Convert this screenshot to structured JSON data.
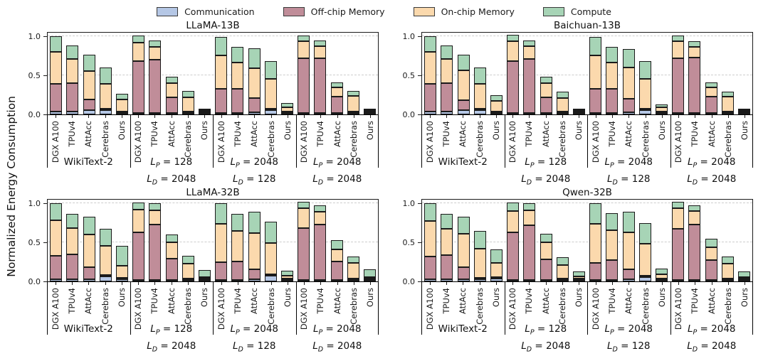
{
  "chart_data": {
    "type": "bar",
    "stacked": true,
    "ylabel": "Normalized Energy Consumption",
    "ylim": [
      0,
      1.06
    ],
    "yticks": [
      {
        "label": "0.0",
        "value": 0.0
      },
      {
        "label": "0.5",
        "value": 0.5
      },
      {
        "label": "1.0",
        "value": 1.0
      }
    ],
    "grid": "horizontal dashed at 0.5 and 1.0",
    "legend_position": "top center",
    "edge_color": "#1a1a1a",
    "legend": [
      {
        "label": "Communication",
        "color": "#b5c7e5"
      },
      {
        "label": "Off-chip Memory",
        "color": "#c08d99"
      },
      {
        "label": "On-chip Memory",
        "color": "#fbd9ad"
      },
      {
        "label": "Compute",
        "color": "#a7d4b6"
      }
    ],
    "bar_labels": [
      "DGX A100",
      "TPUv4",
      "AttAcc",
      "Cerebras",
      "Ours"
    ],
    "groups": [
      {
        "label_runs": [
          [
            {
              "t": "WikiText-2"
            }
          ]
        ]
      },
      {
        "label_runs": [
          [
            {
              "i": "L"
            },
            {
              "sub": "P"
            },
            {
              "t": " = 128"
            }
          ],
          [
            {
              "i": "L"
            },
            {
              "sub": "D"
            },
            {
              "t": " = 2048"
            }
          ]
        ]
      },
      {
        "label_runs": [
          [
            {
              "i": "L"
            },
            {
              "sub": "P"
            },
            {
              "t": " = 2048"
            }
          ],
          [
            {
              "i": "L"
            },
            {
              "sub": "D"
            },
            {
              "t": " = 128"
            }
          ]
        ]
      },
      {
        "label_runs": [
          [
            {
              "i": "L"
            },
            {
              "sub": "P"
            },
            {
              "t": " = 2048"
            }
          ],
          [
            {
              "i": "L"
            },
            {
              "sub": "D"
            },
            {
              "t": " = 2048"
            }
          ]
        ]
      }
    ],
    "series_order": [
      "Communication",
      "Off-chip Memory",
      "On-chip Memory",
      "Compute"
    ],
    "subplots": [
      {
        "title": "LLaMA-13B",
        "values": [
          [
            [
              0.04,
              0.35,
              0.41,
              0.2
            ],
            [
              0.04,
              0.36,
              0.31,
              0.17
            ],
            [
              0.05,
              0.14,
              0.36,
              0.21
            ],
            [
              0.05,
              0.01,
              0.32,
              0.21
            ],
            [
              0.01,
              0.01,
              0.15,
              0.07
            ]
          ],
          [
            [
              0.01,
              0.66,
              0.24,
              0.09
            ],
            [
              0.01,
              0.68,
              0.16,
              0.08
            ],
            [
              0.02,
              0.2,
              0.18,
              0.08
            ],
            [
              0.01,
              0.01,
              0.18,
              0.08
            ],
            [
              0.01,
              0.01,
              0.02,
              0.01
            ]
          ],
          [
            [
              0.02,
              0.31,
              0.43,
              0.24
            ],
            [
              0.02,
              0.31,
              0.34,
              0.2
            ],
            [
              0.03,
              0.18,
              0.38,
              0.25
            ],
            [
              0.05,
              0.01,
              0.38,
              0.23
            ],
            [
              0.01,
              0.01,
              0.05,
              0.05
            ]
          ],
          [
            [
              0.01,
              0.7,
              0.22,
              0.07
            ],
            [
              0.01,
              0.7,
              0.15,
              0.07
            ],
            [
              0.02,
              0.21,
              0.12,
              0.06
            ],
            [
              0.01,
              0.01,
              0.2,
              0.06
            ],
            [
              0.01,
              0.01,
              0.01,
              0.01
            ]
          ]
        ]
      },
      {
        "title": "Baichuan-13B",
        "values": [
          [
            [
              0.04,
              0.35,
              0.41,
              0.2
            ],
            [
              0.04,
              0.36,
              0.31,
              0.17
            ],
            [
              0.05,
              0.13,
              0.38,
              0.2
            ],
            [
              0.05,
              0.01,
              0.32,
              0.21
            ],
            [
              0.01,
              0.01,
              0.14,
              0.07
            ]
          ],
          [
            [
              0.01,
              0.66,
              0.25,
              0.08
            ],
            [
              0.01,
              0.69,
              0.16,
              0.07
            ],
            [
              0.02,
              0.2,
              0.18,
              0.08
            ],
            [
              0.02,
              0.01,
              0.17,
              0.08
            ],
            [
              0.01,
              0.01,
              0.02,
              0.01
            ]
          ],
          [
            [
              0.02,
              0.31,
              0.43,
              0.24
            ],
            [
              0.02,
              0.31,
              0.34,
              0.2
            ],
            [
              0.03,
              0.17,
              0.4,
              0.24
            ],
            [
              0.05,
              0.01,
              0.38,
              0.23
            ],
            [
              0.01,
              0.01,
              0.05,
              0.04
            ]
          ],
          [
            [
              0.01,
              0.7,
              0.22,
              0.07
            ],
            [
              0.01,
              0.71,
              0.14,
              0.07
            ],
            [
              0.02,
              0.21,
              0.12,
              0.06
            ],
            [
              0.01,
              0.01,
              0.19,
              0.06
            ],
            [
              0.01,
              0.01,
              0.01,
              0.01
            ]
          ]
        ]
      },
      {
        "title": "LLaMA-32B",
        "values": [
          [
            [
              0.03,
              0.3,
              0.45,
              0.22
            ],
            [
              0.03,
              0.32,
              0.34,
              0.18
            ],
            [
              0.03,
              0.15,
              0.42,
              0.23
            ],
            [
              0.06,
              0.01,
              0.37,
              0.22
            ],
            [
              0.03,
              0.01,
              0.15,
              0.25
            ]
          ],
          [
            [
              0.01,
              0.61,
              0.29,
              0.09
            ],
            [
              0.01,
              0.71,
              0.18,
              0.09
            ],
            [
              0.02,
              0.27,
              0.21,
              0.1
            ],
            [
              0.02,
              0.01,
              0.19,
              0.1
            ],
            [
              0.01,
              0.01,
              0.02,
              0.09
            ]
          ],
          [
            [
              0.02,
              0.23,
              0.49,
              0.26
            ],
            [
              0.02,
              0.24,
              0.39,
              0.22
            ],
            [
              0.03,
              0.13,
              0.46,
              0.27
            ],
            [
              0.07,
              0.01,
              0.4,
              0.27
            ],
            [
              0.01,
              0.01,
              0.04,
              0.06
            ]
          ],
          [
            [
              0.01,
              0.66,
              0.25,
              0.08
            ],
            [
              0.01,
              0.71,
              0.16,
              0.08
            ],
            [
              0.02,
              0.24,
              0.15,
              0.12
            ],
            [
              0.01,
              0.01,
              0.2,
              0.08
            ],
            [
              0.01,
              0.01,
              0.02,
              0.1
            ]
          ]
        ]
      },
      {
        "title": "Qwen-32B",
        "values": [
          [
            [
              0.03,
              0.29,
              0.45,
              0.23
            ],
            [
              0.03,
              0.31,
              0.34,
              0.19
            ],
            [
              0.03,
              0.15,
              0.43,
              0.22
            ],
            [
              0.03,
              0.01,
              0.37,
              0.23
            ],
            [
              0.04,
              0.01,
              0.18,
              0.17
            ]
          ],
          [
            [
              0.01,
              0.61,
              0.27,
              0.11
            ],
            [
              0.01,
              0.7,
              0.19,
              0.09
            ],
            [
              0.02,
              0.26,
              0.22,
              0.11
            ],
            [
              0.02,
              0.01,
              0.17,
              0.1
            ],
            [
              0.01,
              0.01,
              0.03,
              0.06
            ]
          ],
          [
            [
              0.02,
              0.22,
              0.5,
              0.26
            ],
            [
              0.02,
              0.25,
              0.38,
              0.22
            ],
            [
              0.03,
              0.13,
              0.47,
              0.26
            ],
            [
              0.05,
              0.01,
              0.41,
              0.26
            ],
            [
              0.01,
              0.01,
              0.05,
              0.07
            ]
          ],
          [
            [
              0.01,
              0.65,
              0.26,
              0.08
            ],
            [
              0.01,
              0.71,
              0.17,
              0.07
            ],
            [
              0.02,
              0.25,
              0.16,
              0.11
            ],
            [
              0.01,
              0.01,
              0.19,
              0.09
            ],
            [
              0.01,
              0.01,
              0.02,
              0.07
            ]
          ]
        ]
      }
    ]
  }
}
